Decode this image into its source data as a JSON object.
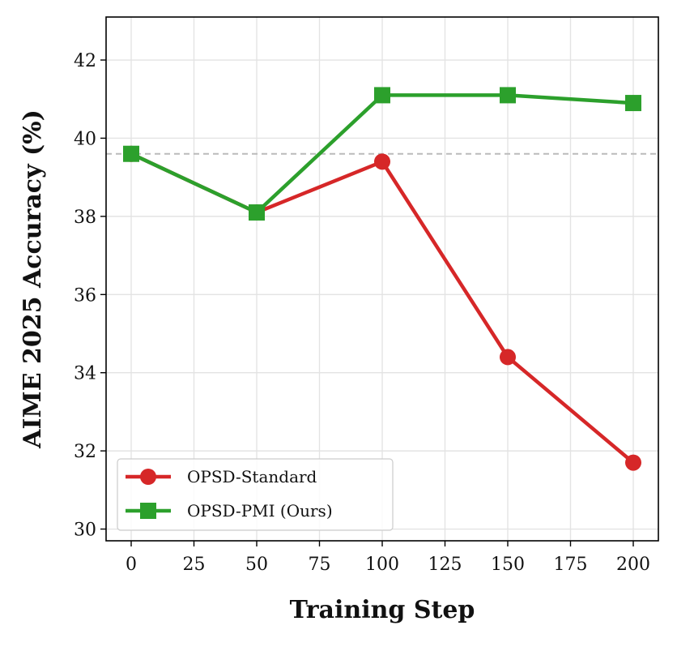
{
  "chart_data": {
    "type": "line",
    "title": "",
    "xlabel": "Training Step",
    "ylabel": "AIME 2025 Accuracy (%)",
    "xlim": [
      -10,
      210
    ],
    "ylim": [
      29.7,
      43.1
    ],
    "x_ticks": [
      0,
      25,
      50,
      75,
      100,
      125,
      150,
      175,
      200
    ],
    "y_ticks": [
      30,
      32,
      34,
      36,
      38,
      40,
      42
    ],
    "grid": true,
    "legend_position": "lower-left",
    "reference_line": {
      "y": 39.6,
      "style": "dashed",
      "color": "#bbbbbb"
    },
    "series": [
      {
        "name": "OPSD-Standard",
        "color": "#d62728",
        "marker": "circle",
        "x": [
          0,
          50,
          100,
          150,
          200
        ],
        "y": [
          39.6,
          38.1,
          39.4,
          34.4,
          31.7
        ]
      },
      {
        "name": "OPSD-PMI (Ours)",
        "color": "#2ca02c",
        "marker": "square",
        "x": [
          0,
          50,
          100,
          150,
          200
        ],
        "y": [
          39.6,
          38.1,
          41.1,
          41.1,
          40.9
        ]
      }
    ]
  }
}
